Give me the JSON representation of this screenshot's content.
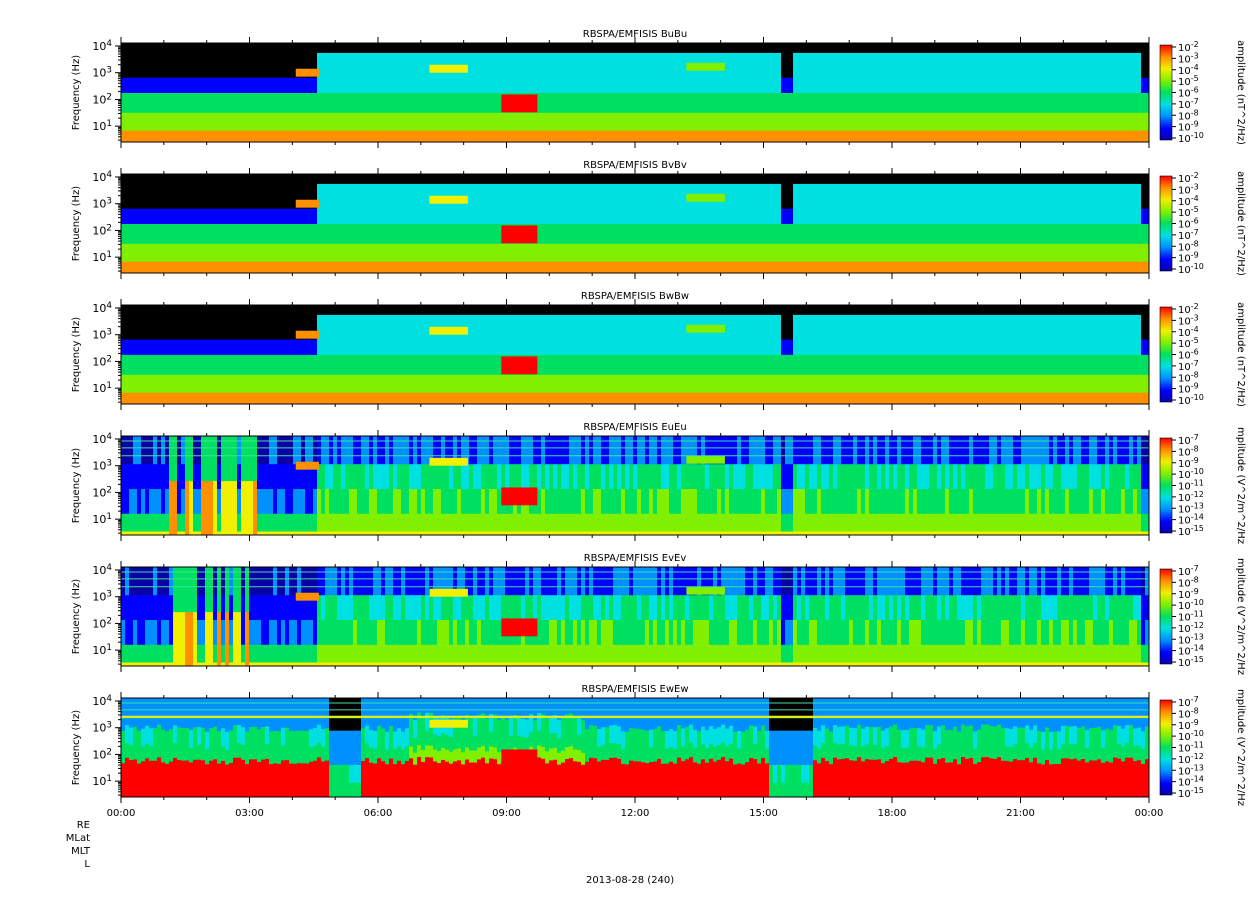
{
  "chart_data": [
    {
      "type": "heatmap",
      "title": "RBSPA/EMFISIS  BuBu",
      "ylabel": "Frequency (Hz)",
      "y_scale": "log",
      "y_ticks": [
        "10^4",
        "10^3",
        "10^2",
        "10^1"
      ],
      "colorbar_label": "amplitude (nT^2/Hz)",
      "colorbar_ticks": [
        "10^-2",
        "10^-3",
        "10^-4",
        "10^-5",
        "10^-6",
        "10^-7",
        "10^-8",
        "10^-9",
        "10^-10"
      ]
    },
    {
      "type": "heatmap",
      "title": "RBSPA/EMFISIS  BvBv",
      "ylabel": "Frequency (Hz)",
      "y_scale": "log",
      "y_ticks": [
        "10^4",
        "10^3",
        "10^2",
        "10^1"
      ],
      "colorbar_label": "amplitude (nT^2/Hz)",
      "colorbar_ticks": [
        "10^-2",
        "10^-3",
        "10^-4",
        "10^-5",
        "10^-6",
        "10^-7",
        "10^-8",
        "10^-9",
        "10^-10"
      ]
    },
    {
      "type": "heatmap",
      "title": "RBSPA/EMFISIS  BwBw",
      "ylabel": "Frequency (Hz)",
      "y_scale": "log",
      "y_ticks": [
        "10^4",
        "10^3",
        "10^2",
        "10^1"
      ],
      "colorbar_label": "amplitude (nT^2/Hz)",
      "colorbar_ticks": [
        "10^-2",
        "10^-3",
        "10^-4",
        "10^-5",
        "10^-6",
        "10^-7",
        "10^-8",
        "10^-9",
        "10^-10"
      ]
    },
    {
      "type": "heatmap",
      "title": "RBSPA/EMFISIS  EuEu",
      "ylabel": "Frequency (Hz)",
      "y_scale": "log",
      "y_ticks": [
        "10^4",
        "10^3",
        "10^2",
        "10^1"
      ],
      "colorbar_label": "mplitude (V^2/m^2/Hz",
      "colorbar_ticks": [
        "10^-7",
        "10^-8",
        "10^-9",
        "10^-10",
        "10^-11",
        "10^-12",
        "10^-13",
        "10^-14",
        "10^-15"
      ]
    },
    {
      "type": "heatmap",
      "title": "RBSPA/EMFISIS  EvEv",
      "ylabel": "Frequency (Hz)",
      "y_scale": "log",
      "y_ticks": [
        "10^4",
        "10^3",
        "10^2",
        "10^1"
      ],
      "colorbar_label": "mplitude (V^2/m^2/Hz",
      "colorbar_ticks": [
        "10^-7",
        "10^-8",
        "10^-9",
        "10^-10",
        "10^-11",
        "10^-12",
        "10^-13",
        "10^-14",
        "10^-15"
      ]
    },
    {
      "type": "heatmap",
      "title": "RBSPA/EMFISIS  EwEw",
      "ylabel": "Frequency (Hz)",
      "y_scale": "log",
      "y_ticks": [
        "10^4",
        "10^3",
        "10^2",
        "10^1"
      ],
      "colorbar_label": "mplitude (V^2/m^2/Hz",
      "colorbar_ticks": [
        "10^-7",
        "10^-8",
        "10^-9",
        "10^-10",
        "10^-11",
        "10^-12",
        "10^-13",
        "10^-14",
        "10^-15"
      ]
    }
  ],
  "x_axis": {
    "tick_labels": [
      "00:00",
      "03:00",
      "06:00",
      "09:00",
      "12:00",
      "15:00",
      "18:00",
      "21:00",
      "00:00"
    ],
    "ephemeris_labels": [
      "RE",
      "MLat",
      "MLT",
      "L"
    ],
    "date_label": "2013-08-28 (240)"
  },
  "colors": {
    "background": "#000000",
    "colormap": [
      "#0a00a8",
      "#0000ff",
      "#0090ff",
      "#00e0e0",
      "#00e060",
      "#80f000",
      "#f0f000",
      "#ff9000",
      "#ff0000"
    ]
  }
}
